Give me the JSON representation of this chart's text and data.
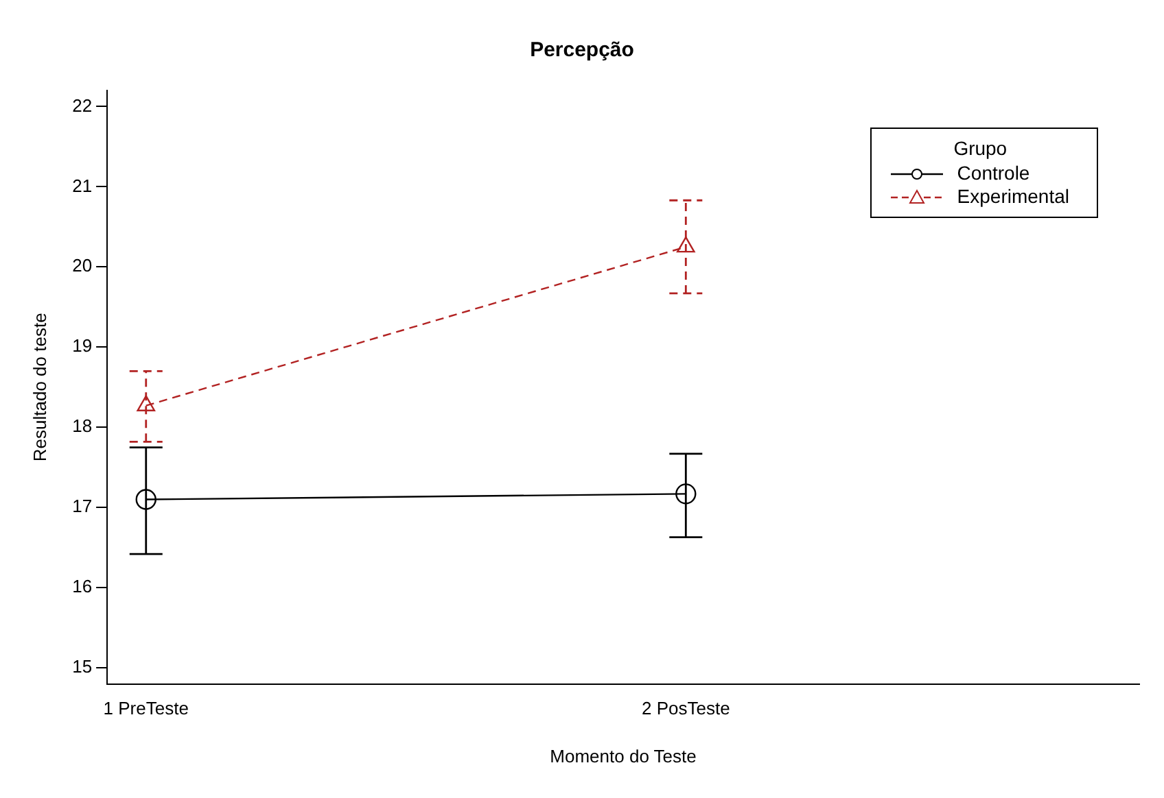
{
  "chart_data": {
    "type": "line",
    "title": "Percepção",
    "xlabel": "Momento do Teste",
    "ylabel": "Resultado do teste",
    "legend_title": "Grupo",
    "categories": [
      "1 PreTeste",
      "2 PosTeste"
    ],
    "series": [
      {
        "name": "Controle",
        "color": "#000000",
        "values": [
          17.1,
          17.17
        ],
        "errors": [
          [
            16.42,
            17.75
          ],
          [
            16.63,
            17.67
          ]
        ],
        "marker": "circle",
        "line_style": "solid"
      },
      {
        "name": "Experimental",
        "color": "#b22222",
        "values": [
          18.27,
          20.25
        ],
        "errors": [
          [
            17.82,
            18.7
          ],
          [
            19.67,
            20.83
          ]
        ],
        "marker": "triangle",
        "line_style": "dashed"
      }
    ],
    "ylim": [
      14.8,
      22.2
    ],
    "yticks": [
      15,
      16,
      17,
      18,
      19,
      20,
      21,
      22
    ],
    "grid": false,
    "legend": "top right"
  }
}
